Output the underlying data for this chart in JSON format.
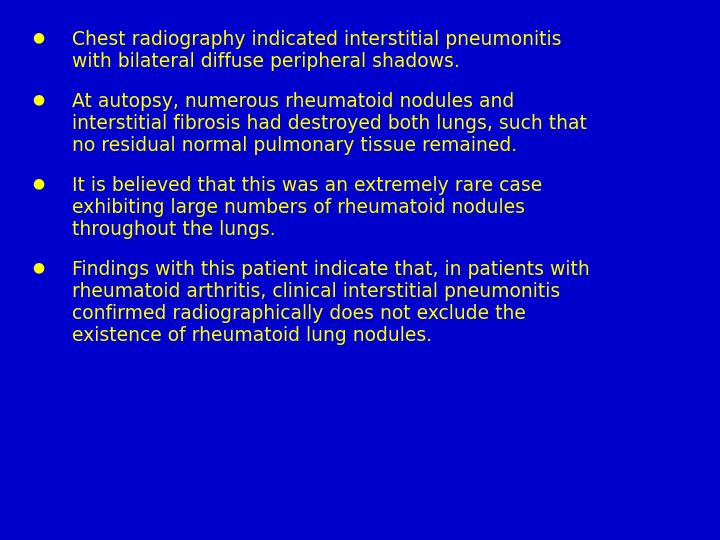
{
  "background_color": "#0000CC",
  "bullet_color": "#FFFF00",
  "text_color": "#FFFF00",
  "font_size": 13.5,
  "bullet_size": 10,
  "bullet_items": [
    "Chest radiography indicated interstitial pneumonitis\nwith bilateral diffuse peripheral shadows.",
    "At autopsy, numerous rheumatoid nodules and\ninterstitial fibrosis had destroyed both lungs, such that\nno residual normal pulmonary tissue remained.",
    "It is believed that this was an extremely rare case\nexhibiting large numbers of rheumatoid nodules\nthroughout the lungs.",
    "Findings with this patient indicate that, in patients with\nrheumatoid arthritis, clinical interstitial pneumonitis\nconfirmed radiographically does not exclude the\nexistence of rheumatoid lung nodules."
  ],
  "bullet_char": "●",
  "figsize": [
    7.2,
    5.4
  ],
  "dpi": 100
}
